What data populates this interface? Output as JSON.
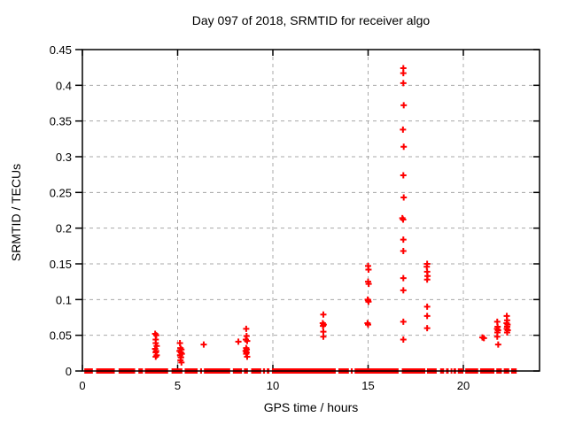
{
  "chart_data": {
    "type": "scatter",
    "title": "Day 097 of 2018, SRMTID for receiver algo",
    "xlabel": "GPS time / hours",
    "ylabel": "SRMTID / TECUs",
    "xlim": [
      0,
      24
    ],
    "ylim": [
      0,
      0.45
    ],
    "xticks": [
      0,
      5,
      10,
      15,
      20
    ],
    "xtick_labels": [
      "0",
      "5",
      "10",
      "15",
      "20"
    ],
    "yticks": [
      0,
      0.05,
      0.1,
      0.15,
      0.2,
      0.25,
      0.3,
      0.35,
      0.4,
      0.45
    ],
    "ytick_labels": [
      "0",
      "0.05",
      "0.1",
      "0.15",
      "0.2",
      "0.25",
      "0.3",
      "0.35",
      "0.4",
      "0.45"
    ],
    "grid": true,
    "legend": "none",
    "marker": "plus",
    "marker_color": "#ff0000",
    "grid_color": "#a8a8a8",
    "axis_color": "#000000",
    "points": [
      [
        3.82,
        0.052
      ],
      [
        3.88,
        0.05
      ],
      [
        3.85,
        0.044
      ],
      [
        3.85,
        0.039
      ],
      [
        3.9,
        0.035
      ],
      [
        3.82,
        0.031
      ],
      [
        3.87,
        0.028
      ],
      [
        3.85,
        0.026
      ],
      [
        3.9,
        0.022
      ],
      [
        3.85,
        0.02
      ],
      [
        5.12,
        0.039
      ],
      [
        5.15,
        0.032
      ],
      [
        5.2,
        0.03
      ],
      [
        5.1,
        0.028
      ],
      [
        5.17,
        0.026
      ],
      [
        5.22,
        0.024
      ],
      [
        5.13,
        0.022
      ],
      [
        5.18,
        0.019
      ],
      [
        5.15,
        0.015
      ],
      [
        5.2,
        0.012
      ],
      [
        6.37,
        0.037
      ],
      [
        8.19,
        0.041
      ],
      [
        8.6,
        0.059
      ],
      [
        8.62,
        0.049
      ],
      [
        8.58,
        0.044
      ],
      [
        8.65,
        0.042
      ],
      [
        8.6,
        0.032
      ],
      [
        8.63,
        0.03
      ],
      [
        8.57,
        0.028
      ],
      [
        8.62,
        0.026
      ],
      [
        8.6,
        0.024
      ],
      [
        8.65,
        0.02
      ],
      [
        12.65,
        0.079
      ],
      [
        12.62,
        0.067
      ],
      [
        12.67,
        0.065
      ],
      [
        12.63,
        0.063
      ],
      [
        12.65,
        0.055
      ],
      [
        12.65,
        0.048
      ],
      [
        15.0,
        0.147
      ],
      [
        15.02,
        0.142
      ],
      [
        15.0,
        0.125
      ],
      [
        15.03,
        0.122
      ],
      [
        14.98,
        0.1
      ],
      [
        15.0,
        0.099
      ],
      [
        15.02,
        0.097
      ],
      [
        14.97,
        0.067
      ],
      [
        15.0,
        0.065
      ],
      [
        16.85,
        0.424
      ],
      [
        16.85,
        0.417
      ],
      [
        16.85,
        0.403
      ],
      [
        16.87,
        0.372
      ],
      [
        16.83,
        0.338
      ],
      [
        16.87,
        0.314
      ],
      [
        16.85,
        0.274
      ],
      [
        16.87,
        0.243
      ],
      [
        16.8,
        0.214
      ],
      [
        16.84,
        0.212
      ],
      [
        16.85,
        0.184
      ],
      [
        16.85,
        0.168
      ],
      [
        16.85,
        0.13
      ],
      [
        16.85,
        0.113
      ],
      [
        16.85,
        0.069
      ],
      [
        16.85,
        0.044
      ],
      [
        18.1,
        0.15
      ],
      [
        18.08,
        0.146
      ],
      [
        18.1,
        0.139
      ],
      [
        18.12,
        0.133
      ],
      [
        18.1,
        0.128
      ],
      [
        18.1,
        0.09
      ],
      [
        18.1,
        0.077
      ],
      [
        18.1,
        0.06
      ],
      [
        21.0,
        0.047
      ],
      [
        21.08,
        0.046
      ],
      [
        21.78,
        0.069
      ],
      [
        21.8,
        0.062
      ],
      [
        21.77,
        0.059
      ],
      [
        21.82,
        0.057
      ],
      [
        21.79,
        0.054
      ],
      [
        21.78,
        0.048
      ],
      [
        21.83,
        0.037
      ],
      [
        22.28,
        0.077
      ],
      [
        22.3,
        0.071
      ],
      [
        22.27,
        0.067
      ],
      [
        22.32,
        0.065
      ],
      [
        22.3,
        0.062
      ],
      [
        22.28,
        0.059
      ],
      [
        22.33,
        0.057
      ],
      [
        22.3,
        0.054
      ]
    ],
    "baseline_segments": [
      [
        0.1,
        0.55
      ],
      [
        0.72,
        1.7
      ],
      [
        1.9,
        2.77
      ],
      [
        2.94,
        3.18
      ],
      [
        3.28,
        4.5
      ],
      [
        4.68,
        5.25
      ],
      [
        5.37,
        6.05
      ],
      [
        6.18,
        6.28
      ],
      [
        6.38,
        7.76
      ],
      [
        7.9,
        8.38
      ],
      [
        8.48,
        8.69
      ],
      [
        8.86,
        9.39
      ],
      [
        9.48,
        9.59
      ],
      [
        9.68,
        9.82
      ],
      [
        9.95,
        13.3
      ],
      [
        13.44,
        13.99
      ],
      [
        14.09,
        14.19
      ],
      [
        14.29,
        16.6
      ],
      [
        16.77,
        18.0
      ],
      [
        18.09,
        18.6
      ],
      [
        18.78,
        18.99
      ],
      [
        19.09,
        19.23
      ],
      [
        19.33,
        19.39
      ],
      [
        19.48,
        19.62
      ],
      [
        19.71,
        20.0
      ],
      [
        20.1,
        20.78
      ],
      [
        20.88,
        21.63
      ],
      [
        21.73,
        22.02
      ],
      [
        22.12,
        22.41
      ],
      [
        22.51,
        22.8
      ]
    ]
  }
}
